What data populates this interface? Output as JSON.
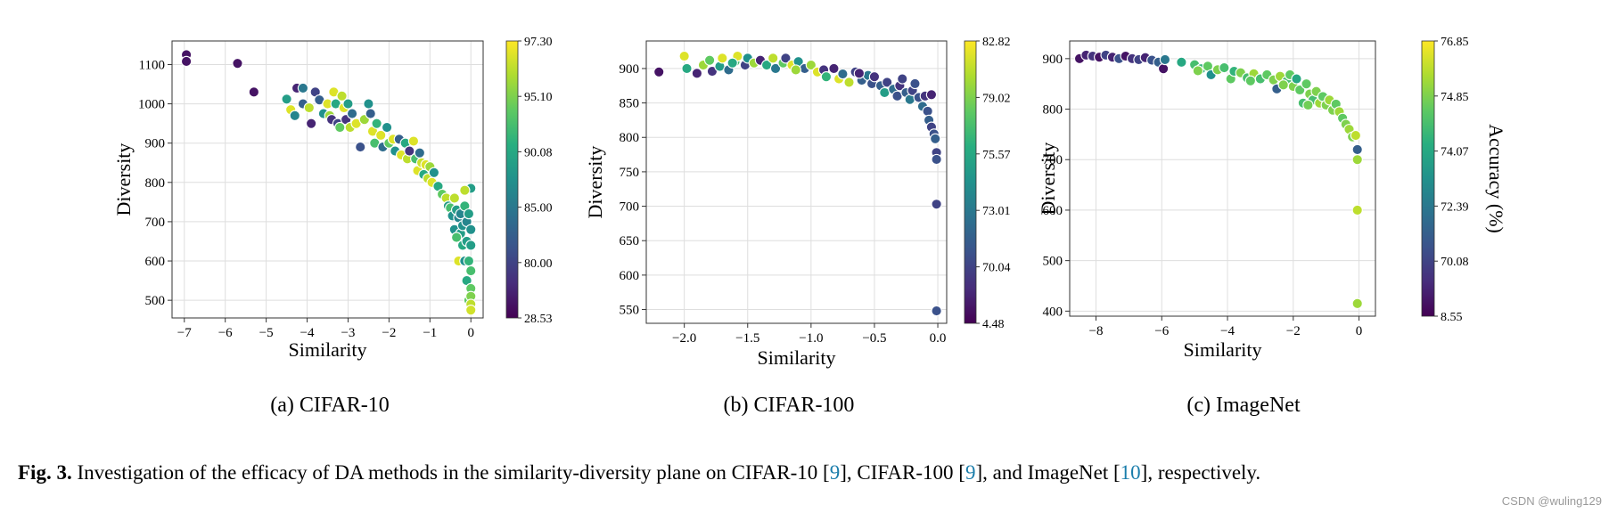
{
  "chart_data": [
    {
      "type": "scatter",
      "xlabel": "Similarity",
      "ylabel": "Diversity",
      "xlim": [
        -7.3,
        0.3
      ],
      "ylim": [
        455,
        1160
      ],
      "xticks": [
        -7,
        -6,
        -5,
        -4,
        -3,
        -2,
        -1,
        0
      ],
      "yticks": [
        500,
        600,
        700,
        800,
        900,
        1000,
        1100
      ],
      "colorbar_ticks": [
        "28.53",
        "80.00",
        "85.00",
        "90.08",
        "95.10",
        "97.30"
      ],
      "colormap": "viridis",
      "grid": true,
      "caption": "(a) CIFAR-10",
      "points": [
        [
          -6.95,
          1125,
          0.05
        ],
        [
          -6.95,
          1108,
          0.05
        ],
        [
          -5.7,
          1103,
          0.05
        ],
        [
          -5.3,
          1030,
          0.05
        ],
        [
          -4.5,
          1012,
          0.55
        ],
        [
          -4.4,
          985,
          0.95
        ],
        [
          -4.3,
          970,
          0.45
        ],
        [
          -4.25,
          1040,
          0.1
        ],
        [
          -4.1,
          1040,
          0.4
        ],
        [
          -4.1,
          1000,
          0.3
        ],
        [
          -3.95,
          990,
          0.9
        ],
        [
          -3.9,
          950,
          0.1
        ],
        [
          -3.8,
          1030,
          0.2
        ],
        [
          -3.7,
          1010,
          0.3
        ],
        [
          -3.6,
          975,
          0.5
        ],
        [
          -3.5,
          1000,
          0.95
        ],
        [
          -3.45,
          970,
          0.85
        ],
        [
          -3.4,
          960,
          0.15
        ],
        [
          -3.35,
          1030,
          0.95
        ],
        [
          -3.3,
          1000,
          0.6
        ],
        [
          -3.25,
          950,
          0.2
        ],
        [
          -3.2,
          940,
          0.75
        ],
        [
          -3.15,
          1020,
          0.9
        ],
        [
          -3.1,
          990,
          0.95
        ],
        [
          -3.05,
          960,
          0.15
        ],
        [
          -3.0,
          1000,
          0.55
        ],
        [
          -2.95,
          940,
          0.9
        ],
        [
          -2.9,
          975,
          0.35
        ],
        [
          -2.8,
          950,
          0.95
        ],
        [
          -2.7,
          890,
          0.25
        ],
        [
          -2.6,
          960,
          0.85
        ],
        [
          -2.5,
          1000,
          0.5
        ],
        [
          -2.45,
          975,
          0.3
        ],
        [
          -2.4,
          930,
          0.95
        ],
        [
          -2.35,
          900,
          0.7
        ],
        [
          -2.3,
          950,
          0.65
        ],
        [
          -2.2,
          920,
          0.95
        ],
        [
          -2.15,
          890,
          0.35
        ],
        [
          -2.05,
          940,
          0.5
        ],
        [
          -2.0,
          900,
          0.75
        ],
        [
          -1.9,
          910,
          0.95
        ],
        [
          -1.85,
          880,
          0.5
        ],
        [
          -1.75,
          910,
          0.3
        ],
        [
          -1.7,
          870,
          0.95
        ],
        [
          -1.6,
          900,
          0.6
        ],
        [
          -1.55,
          860,
          0.9
        ],
        [
          -1.5,
          880,
          0.15
        ],
        [
          -1.4,
          905,
          0.95
        ],
        [
          -1.35,
          860,
          0.7
        ],
        [
          -1.3,
          830,
          0.95
        ],
        [
          -1.25,
          875,
          0.35
        ],
        [
          -1.2,
          850,
          0.92
        ],
        [
          -1.15,
          820,
          0.6
        ],
        [
          -1.1,
          845,
          0.95
        ],
        [
          -1.05,
          810,
          0.9
        ],
        [
          -1.0,
          840,
          0.85
        ],
        [
          -0.95,
          800,
          0.95
        ],
        [
          -0.9,
          825,
          0.5
        ],
        [
          -0.8,
          790,
          0.6
        ],
        [
          -0.7,
          770,
          0.75
        ],
        [
          -0.6,
          760,
          0.9
        ],
        [
          -0.55,
          740,
          0.55
        ],
        [
          -0.5,
          735,
          0.7
        ],
        [
          -0.45,
          715,
          0.5
        ],
        [
          -0.4,
          760,
          0.9
        ],
        [
          -0.4,
          680,
          0.5
        ],
        [
          -0.35,
          730,
          0.55
        ],
        [
          -0.3,
          710,
          0.45
        ],
        [
          -0.3,
          600,
          0.95
        ],
        [
          -0.25,
          720,
          0.45
        ],
        [
          -0.25,
          670,
          0.55
        ],
        [
          -0.2,
          690,
          0.5
        ],
        [
          -0.2,
          640,
          0.6
        ],
        [
          -0.15,
          740,
          0.65
        ],
        [
          -0.15,
          600,
          0.5
        ],
        [
          -0.1,
          700,
          0.45
        ],
        [
          -0.1,
          650,
          0.55
        ],
        [
          -0.1,
          550,
          0.6
        ],
        [
          -0.05,
          720,
          0.55
        ],
        [
          -0.05,
          600,
          0.65
        ],
        [
          -0.05,
          500,
          0.75
        ],
        [
          0.0,
          785,
          0.55
        ],
        [
          0.0,
          680,
          0.5
        ],
        [
          0.0,
          640,
          0.55
        ],
        [
          0.0,
          575,
          0.7
        ],
        [
          0.0,
          530,
          0.75
        ],
        [
          0.0,
          510,
          0.8
        ],
        [
          0.0,
          490,
          0.9
        ],
        [
          0.0,
          475,
          0.93
        ],
        [
          -0.15,
          780,
          0.9
        ],
        [
          -0.35,
          660,
          0.7
        ]
      ]
    },
    {
      "type": "scatter",
      "xlabel": "Similarity",
      "ylabel": "Diversity",
      "xlim": [
        -2.3,
        0.07
      ],
      "ylim": [
        530,
        940
      ],
      "xticks": [
        "-2.0",
        "-1.5",
        "-1.0",
        "-0.5",
        "0.0"
      ],
      "xtick_values": [
        -2.0,
        -1.5,
        -1.0,
        -0.5,
        0.0
      ],
      "yticks": [
        550,
        600,
        650,
        700,
        750,
        800,
        850,
        900
      ],
      "colorbar_ticks": [
        "4.48",
        "70.04",
        "73.01",
        "75.57",
        "79.02",
        "82.82"
      ],
      "colormap": "viridis",
      "grid": true,
      "caption": "(b) CIFAR-100",
      "points": [
        [
          -2.2,
          895,
          0.05
        ],
        [
          -2.0,
          918,
          0.95
        ],
        [
          -1.98,
          900,
          0.6
        ],
        [
          -1.9,
          893,
          0.1
        ],
        [
          -1.85,
          905,
          0.85
        ],
        [
          -1.8,
          912,
          0.75
        ],
        [
          -1.78,
          896,
          0.15
        ],
        [
          -1.72,
          903,
          0.55
        ],
        [
          -1.7,
          915,
          0.95
        ],
        [
          -1.65,
          898,
          0.35
        ],
        [
          -1.6,
          910,
          0.7
        ],
        [
          -1.58,
          918,
          0.95
        ],
        [
          -1.52,
          905,
          0.2
        ],
        [
          -1.5,
          915,
          0.5
        ],
        [
          -1.45,
          908,
          0.85
        ],
        [
          -1.4,
          912,
          0.1
        ],
        [
          -1.35,
          905,
          0.6
        ],
        [
          -1.3,
          915,
          0.9
        ],
        [
          -1.28,
          900,
          0.4
        ],
        [
          -1.22,
          908,
          0.75
        ],
        [
          -1.2,
          915,
          0.2
        ],
        [
          -1.15,
          905,
          0.95
        ],
        [
          -1.1,
          910,
          0.5
        ],
        [
          -1.05,
          900,
          0.3
        ],
        [
          -1.0,
          905,
          0.85
        ],
        [
          -0.95,
          895,
          0.95
        ],
        [
          -0.9,
          898,
          0.15
        ],
        [
          -0.88,
          888,
          0.65
        ],
        [
          -0.82,
          900,
          0.1
        ],
        [
          -0.78,
          885,
          0.95
        ],
        [
          -0.75,
          892,
          0.35
        ],
        [
          -0.7,
          880,
          0.9
        ],
        [
          -0.65,
          895,
          0.2
        ],
        [
          -0.6,
          883,
          0.3
        ],
        [
          -0.55,
          890,
          0.4
        ],
        [
          -0.52,
          878,
          0.25
        ],
        [
          -0.5,
          888,
          0.15
        ],
        [
          -0.45,
          875,
          0.3
        ],
        [
          -0.42,
          865,
          0.55
        ],
        [
          -0.4,
          880,
          0.2
        ],
        [
          -0.35,
          870,
          0.35
        ],
        [
          -0.32,
          860,
          0.25
        ],
        [
          -0.3,
          875,
          0.15
        ],
        [
          -0.25,
          865,
          0.3
        ],
        [
          -0.22,
          855,
          0.4
        ],
        [
          -0.2,
          868,
          0.2
        ],
        [
          -0.15,
          858,
          0.25
        ],
        [
          -0.12,
          845,
          0.35
        ],
        [
          -0.1,
          860,
          0.15
        ],
        [
          -0.08,
          838,
          0.25
        ],
        [
          -0.07,
          825,
          0.3
        ],
        [
          -0.05,
          862,
          0.1
        ],
        [
          -0.05,
          815,
          0.2
        ],
        [
          -0.03,
          805,
          0.25
        ],
        [
          -0.02,
          798,
          0.3
        ],
        [
          -0.01,
          778,
          0.2
        ],
        [
          -0.01,
          768,
          0.25
        ],
        [
          -0.01,
          703,
          0.2
        ],
        [
          -0.01,
          548,
          0.25
        ],
        [
          -0.18,
          878,
          0.25
        ],
        [
          -0.28,
          885,
          0.2
        ],
        [
          -0.62,
          893,
          0.1
        ],
        [
          -1.62,
          908,
          0.6
        ],
        [
          -1.12,
          898,
          0.85
        ]
      ]
    },
    {
      "type": "scatter",
      "xlabel": "Similarity",
      "ylabel": "Diversity",
      "colorbar_label": "Accuracy (%)",
      "xlim": [
        -8.8,
        0.5
      ],
      "ylim": [
        390,
        935
      ],
      "xticks": [
        -8,
        -6,
        -4,
        -2,
        0
      ],
      "yticks": [
        400,
        500,
        600,
        700,
        800,
        900
      ],
      "colorbar_ticks": [
        "8.55",
        "70.08",
        "72.39",
        "74.07",
        "74.85",
        "76.85"
      ],
      "colormap": "viridis",
      "grid": true,
      "caption": "(c) ImageNet",
      "points": [
        [
          -8.5,
          900,
          0.05
        ],
        [
          -8.3,
          907,
          0.1
        ],
        [
          -8.1,
          905,
          0.15
        ],
        [
          -7.9,
          903,
          0.05
        ],
        [
          -7.7,
          907,
          0.2
        ],
        [
          -7.5,
          903,
          0.1
        ],
        [
          -7.3,
          900,
          0.25
        ],
        [
          -7.1,
          905,
          0.05
        ],
        [
          -6.9,
          900,
          0.15
        ],
        [
          -6.7,
          898,
          0.2
        ],
        [
          -6.5,
          902,
          0.1
        ],
        [
          -6.3,
          897,
          0.25
        ],
        [
          -6.1,
          893,
          0.3
        ],
        [
          -5.95,
          880,
          0.05
        ],
        [
          -5.9,
          898,
          0.4
        ],
        [
          -5.4,
          893,
          0.6
        ],
        [
          -5.0,
          888,
          0.7
        ],
        [
          -4.8,
          880,
          0.65
        ],
        [
          -4.6,
          885,
          0.75
        ],
        [
          -4.5,
          868,
          0.5
        ],
        [
          -4.3,
          878,
          0.8
        ],
        [
          -4.1,
          882,
          0.7
        ],
        [
          -3.9,
          860,
          0.75
        ],
        [
          -3.8,
          875,
          0.65
        ],
        [
          -3.6,
          872,
          0.8
        ],
        [
          -3.4,
          862,
          0.7
        ],
        [
          -3.2,
          870,
          0.85
        ],
        [
          -3.0,
          860,
          0.7
        ],
        [
          -2.8,
          868,
          0.75
        ],
        [
          -2.6,
          858,
          0.8
        ],
        [
          -2.5,
          840,
          0.3
        ],
        [
          -2.4,
          865,
          0.85
        ],
        [
          -2.2,
          855,
          0.7
        ],
        [
          -2.1,
          868,
          0.75
        ],
        [
          -2.0,
          845,
          0.8
        ],
        [
          -1.9,
          860,
          0.6
        ],
        [
          -1.8,
          838,
          0.75
        ],
        [
          -1.7,
          812,
          0.7
        ],
        [
          -1.6,
          850,
          0.75
        ],
        [
          -1.5,
          830,
          0.8
        ],
        [
          -1.4,
          818,
          0.7
        ],
        [
          -1.3,
          835,
          0.8
        ],
        [
          -1.2,
          812,
          0.85
        ],
        [
          -1.1,
          825,
          0.75
        ],
        [
          -1.0,
          808,
          0.8
        ],
        [
          -0.9,
          818,
          0.85
        ],
        [
          -0.8,
          798,
          0.8
        ],
        [
          -0.7,
          810,
          0.75
        ],
        [
          -0.6,
          795,
          0.85
        ],
        [
          -0.5,
          782,
          0.75
        ],
        [
          -0.4,
          770,
          0.8
        ],
        [
          -0.3,
          760,
          0.85
        ],
        [
          -0.2,
          745,
          0.8
        ],
        [
          -0.1,
          748,
          0.9
        ],
        [
          -0.05,
          720,
          0.3
        ],
        [
          -0.05,
          700,
          0.85
        ],
        [
          -0.05,
          600,
          0.9
        ],
        [
          -0.05,
          415,
          0.85
        ],
        [
          -2.3,
          848,
          0.8
        ],
        [
          -3.3,
          856,
          0.75
        ],
        [
          -4.9,
          876,
          0.8
        ],
        [
          -1.55,
          808,
          0.78
        ]
      ]
    }
  ],
  "captions": {
    "fig_no": "Fig. 3.",
    "text_1": " Investigation of the efficacy of DA methods in the similarity-diversity plane on CIFAR-10 [",
    "cite_1": "9",
    "text_2": "], CIFAR-100 [",
    "cite_2": "9",
    "text_3": "], and ImageNet [",
    "cite_3": "10",
    "text_4": "], respectively."
  },
  "watermark": "CSDN @wuling129"
}
